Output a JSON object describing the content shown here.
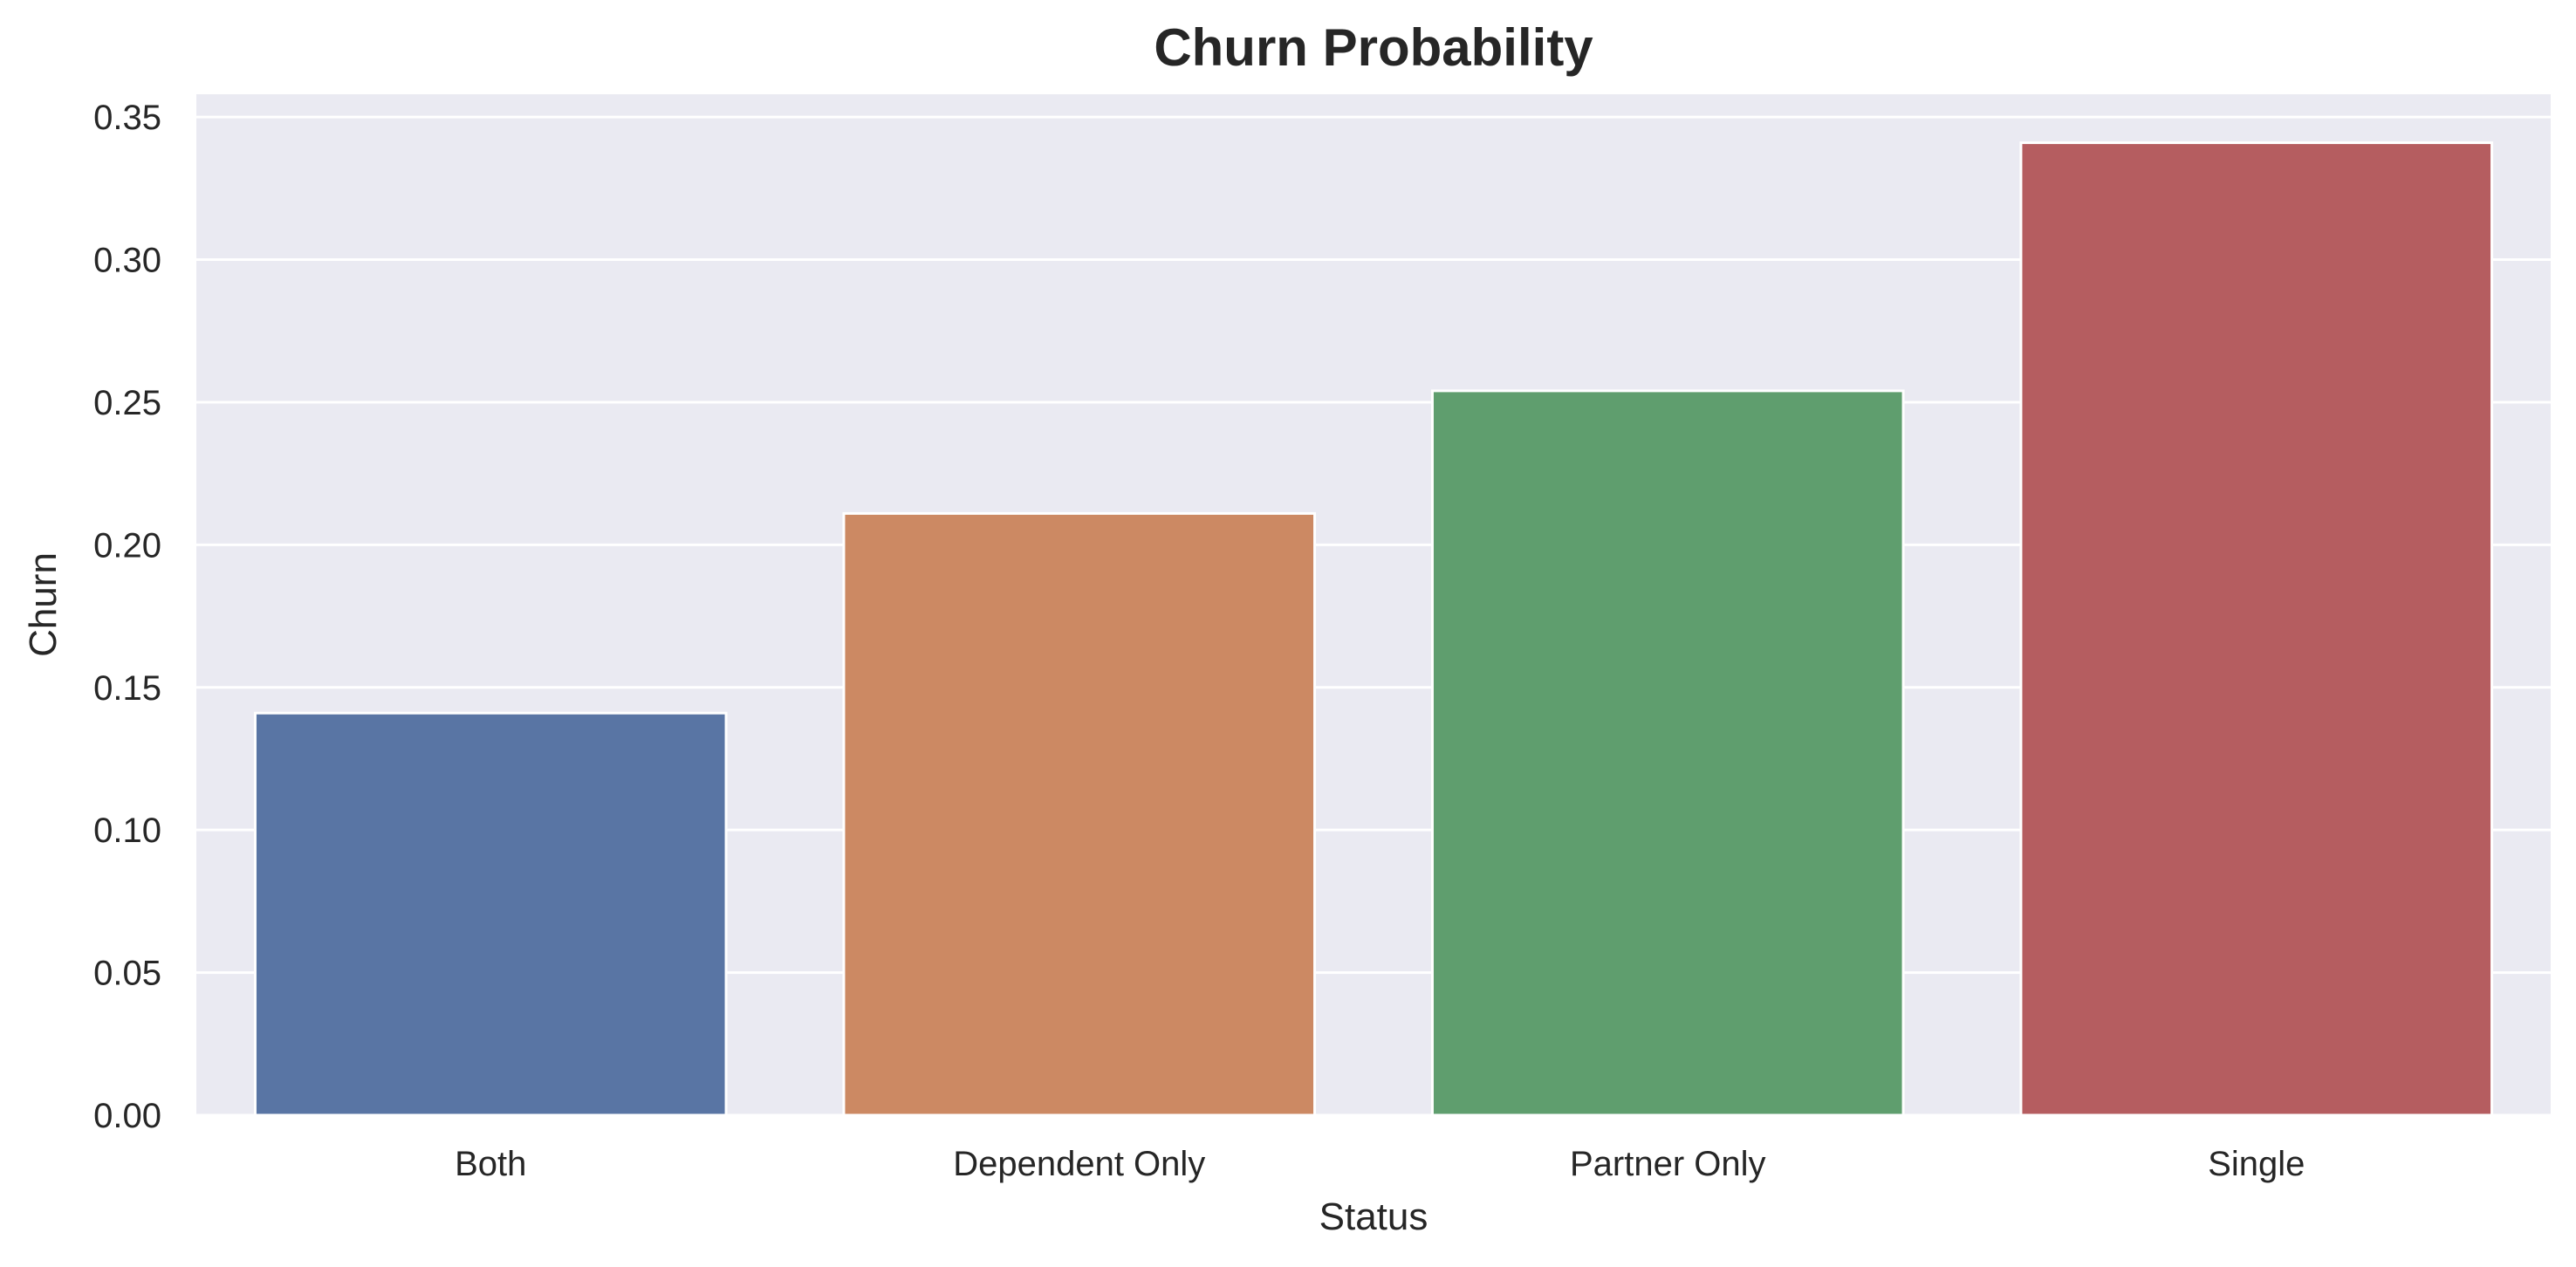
{
  "chart_data": {
    "type": "bar",
    "title": "Churn Probability",
    "xlabel": "Status",
    "ylabel": "Churn",
    "categories": [
      "Both",
      "Dependent Only",
      "Partner Only",
      "Single"
    ],
    "values": [
      0.141,
      0.211,
      0.254,
      0.341
    ],
    "colors": [
      "#5975a4",
      "#cc8963",
      "#5f9e6e",
      "#b55d60"
    ],
    "ylim": [
      0,
      0.358
    ],
    "yticks": [
      0.0,
      0.05,
      0.1,
      0.15,
      0.2,
      0.25,
      0.3,
      0.35
    ],
    "ytick_labels": [
      "0.00",
      "0.05",
      "0.10",
      "0.15",
      "0.20",
      "0.25",
      "0.30",
      "0.35"
    ],
    "grid": true,
    "background_color": "#eaeaf2",
    "grid_color": "#ffffff"
  }
}
